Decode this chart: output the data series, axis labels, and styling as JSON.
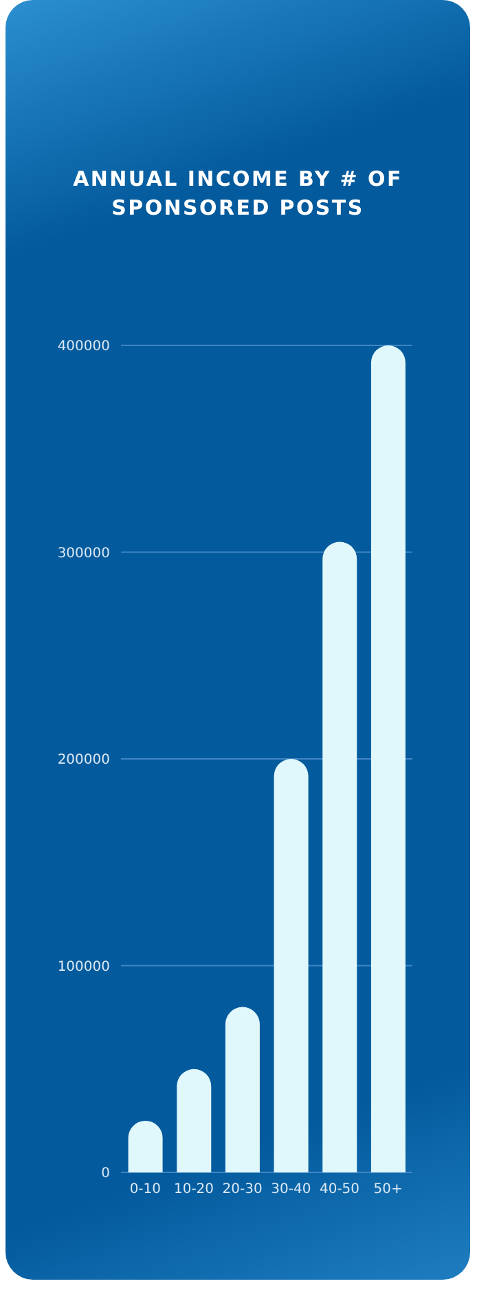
{
  "chart_data": {
    "type": "bar",
    "title": "ANNUAL INCOME BY # OF SPONSORED POSTS",
    "categories": [
      "0-10",
      "10-20",
      "20-30",
      "30-40",
      "40-50",
      "50+"
    ],
    "values": [
      25000,
      50000,
      80000,
      200000,
      305000,
      400000
    ],
    "color": "#e0f7fb",
    "ylim": [
      0,
      400000
    ],
    "yticks": [
      0,
      100000,
      200000,
      300000,
      400000
    ],
    "grid": "y",
    "legend": false
  }
}
